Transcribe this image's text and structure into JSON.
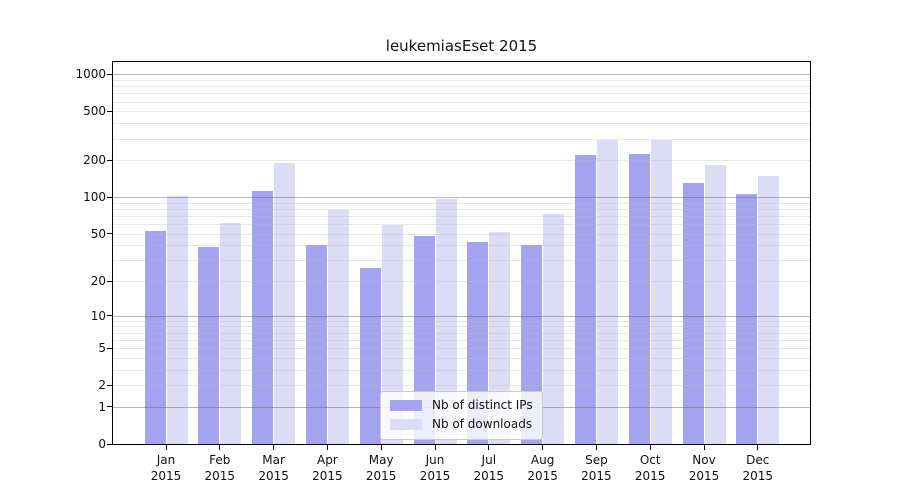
{
  "chart_data": {
    "type": "bar",
    "title": "leukemiasEset 2015",
    "categories": [
      "Jan 2015",
      "Feb 2015",
      "Mar 2015",
      "Apr 2015",
      "May 2015",
      "Jun 2015",
      "Jul 2015",
      "Aug 2015",
      "Sep 2015",
      "Oct 2015",
      "Nov 2015",
      "Dec 2015"
    ],
    "series": [
      {
        "name": "Nb of distinct IPs",
        "color": "#a3a3ef",
        "values": [
          53,
          39,
          113,
          40,
          26,
          48,
          43,
          40,
          220,
          225,
          130,
          105
        ]
      },
      {
        "name": "Nb of downloads",
        "color": "#dcdcf7",
        "values": [
          102,
          61,
          190,
          78,
          59,
          97,
          52,
          72,
          290,
          290,
          182,
          150
        ]
      }
    ],
    "xlabel": "",
    "ylabel": "",
    "yscale": "log10(1+x)",
    "yticks": [
      0,
      1,
      2,
      5,
      10,
      20,
      50,
      100,
      200,
      500,
      1000
    ],
    "ylim": [
      0,
      1270
    ],
    "grid": "horizontal major and log minor lines",
    "legend_position": "lower center",
    "grid_major_color": "#b0b0b0",
    "grid_minor_color": "#e8e8e8",
    "frame_color": "#000000"
  }
}
